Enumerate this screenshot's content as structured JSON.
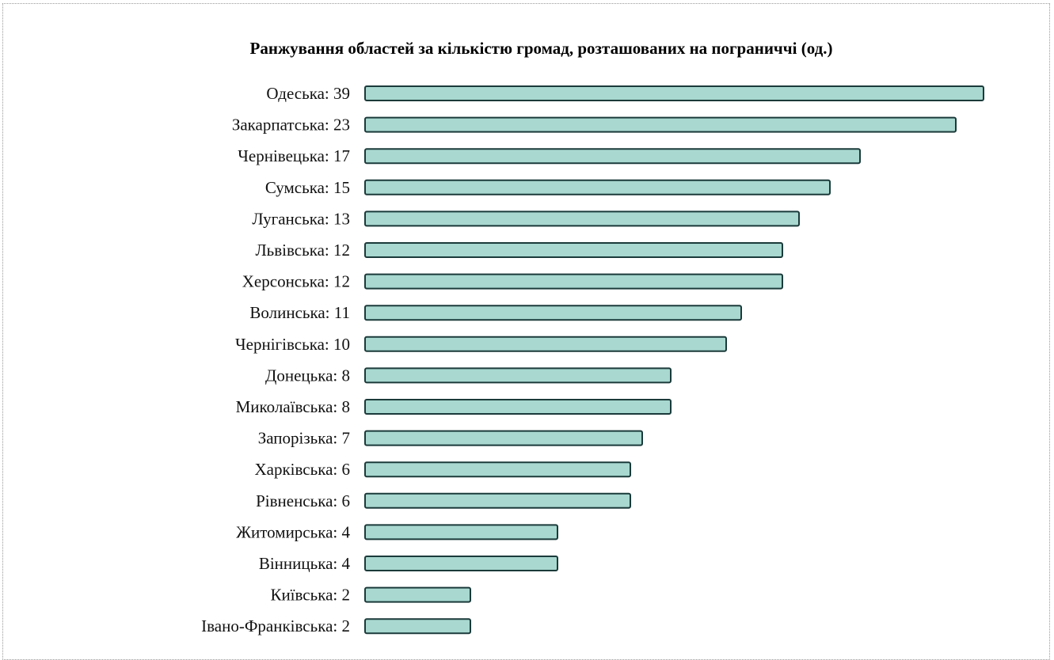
{
  "chart_data": {
    "type": "bar",
    "orientation": "horizontal",
    "title": "Ранжування областей за кількістю громад, розташованих на пограниччі (од.)",
    "xlabel": "",
    "ylabel": "",
    "grid": false,
    "legend": "none",
    "bar_color": "#a8d8d0",
    "bar_edge_color": "#1b3a3a",
    "categories": [
      "Одеська",
      "Закарпатська",
      "Чернівецька",
      "Сумська",
      "Луганська",
      "Львівська",
      "Херсонська",
      "Волинська",
      "Чернігівська",
      "Донецька",
      "Миколаївська",
      "Запорізька",
      "Харківська",
      "Рівненська",
      "Житомирська",
      "Вінницька",
      "Київська",
      "Івано-Франківська"
    ],
    "values": [
      39,
      23,
      17,
      15,
      13,
      12,
      12,
      11,
      10,
      8,
      8,
      7,
      6,
      6,
      4,
      4,
      2,
      2
    ],
    "labels": [
      "Одеська: 39",
      "Закарпатська: 23",
      "Чернівецька: 17",
      "Сумська: 15",
      "Луганська: 13",
      "Львівська: 12",
      "Херсонська: 12",
      "Волинська: 11",
      "Чернігівська: 10",
      "Донецька: 8",
      "Миколаївська: 8",
      "Запорізька: 7",
      "Харківська: 6",
      "Рівненська: 6",
      "Житомирська: 4",
      "Вінницька: 4",
      "Київська: 2",
      "Івано-Франківська: 2"
    ],
    "bar_end": [
      1242,
      1207,
      1086,
      1048,
      1009,
      988,
      988,
      936,
      917,
      847,
      847,
      811,
      796,
      796,
      704,
      704,
      594,
      594
    ]
  }
}
